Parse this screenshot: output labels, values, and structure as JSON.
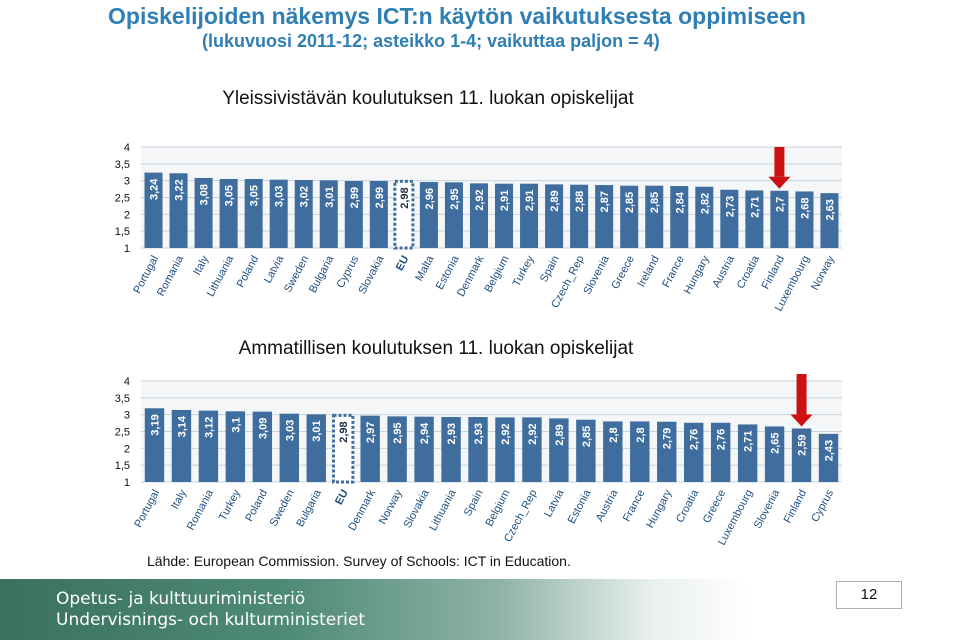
{
  "header": {
    "title": "Opiskelijoiden näkemys ICT:n käytön vaikutuksesta oppimiseen",
    "subtitle": "(lukuvuosi 2011-12; asteikko 1-4; vaikuttaa paljon = 4)"
  },
  "colors": {
    "bar": "#3f6e9e",
    "eu_bar_border": "#3f6e9e",
    "country_text": "#1f4f80",
    "arrow": "#cc1111",
    "title": "#2f7fb4"
  },
  "chart_data": [
    {
      "type": "bar",
      "title": "Yleissivistävän koulutuksen 11. luokan opiskelijat",
      "categories": [
        "Portugal",
        "Romania",
        "Italy",
        "Lithuania",
        "Poland",
        "Latvia",
        "Sweden",
        "Bulgaria",
        "Cyprus",
        "Slovakia",
        "EU",
        "Malta",
        "Estonia",
        "Denmark",
        "Belgium",
        "Turkey",
        "Spain",
        "Czech_Rep",
        "Slovenia",
        "Greece",
        "Ireland",
        "France",
        "Hungary",
        "Austria",
        "Croatia",
        "Finland",
        "Luxembourg",
        "Norway"
      ],
      "values": [
        3.24,
        3.22,
        3.08,
        3.05,
        3.05,
        3.03,
        3.02,
        3.01,
        2.99,
        2.99,
        2.98,
        2.96,
        2.95,
        2.92,
        2.91,
        2.91,
        2.89,
        2.88,
        2.87,
        2.85,
        2.85,
        2.84,
        2.82,
        2.73,
        2.71,
        2.7,
        2.68,
        2.63
      ],
      "value_labels": [
        "3,24",
        "3,22",
        "3,08",
        "3,05",
        "3,05",
        "3,03",
        "3,02",
        "3,01",
        "2,99",
        "2,99",
        "2,98",
        "2,96",
        "2,95",
        "2,92",
        "2,91",
        "2,91",
        "2,89",
        "2,88",
        "2,87",
        "2,85",
        "2,85",
        "2,84",
        "2,82",
        "2,73",
        "2,71",
        "2,7",
        "2,68",
        "2,63"
      ],
      "highlight_outline": "EU",
      "arrow_marker": "Finland",
      "y_ticks": [
        "1",
        "1,5",
        "2",
        "2,5",
        "3",
        "3,5",
        "4"
      ],
      "ylim": [
        1,
        4
      ],
      "grid": true
    },
    {
      "type": "bar",
      "title": "Ammatillisen koulutuksen 11. luokan opiskelijat",
      "categories": [
        "Portugal",
        "Italy",
        "Romania",
        "Turkey",
        "Poland",
        "Sweden",
        "Bulgaria",
        "EU",
        "Denmark",
        "Norway",
        "Slovakia",
        "Lithuania",
        "Spain",
        "Belgium",
        "Czech_Rep",
        "Latvia",
        "Estonia",
        "Austria",
        "France",
        "Hungary",
        "Croatia",
        "Greece",
        "Luxembourg",
        "Slovenia",
        "Finland",
        "Cyprus"
      ],
      "values": [
        3.19,
        3.14,
        3.12,
        3.1,
        3.09,
        3.03,
        3.01,
        2.98,
        2.97,
        2.95,
        2.94,
        2.93,
        2.93,
        2.92,
        2.92,
        2.89,
        2.85,
        2.8,
        2.8,
        2.79,
        2.76,
        2.76,
        2.71,
        2.65,
        2.59,
        2.43
      ],
      "value_labels": [
        "3,19",
        "3,14",
        "3,12",
        "3,1",
        "3,09",
        "3,03",
        "3,01",
        "2,98",
        "2,97",
        "2,95",
        "2,94",
        "2,93",
        "2,93",
        "2,92",
        "2,92",
        "2,89",
        "2,85",
        "2,8",
        "2,8",
        "2,79",
        "2,76",
        "2,76",
        "2,71",
        "2,65",
        "2,59",
        "2,43"
      ],
      "highlight_outline": "EU",
      "arrow_marker": "Finland",
      "y_ticks": [
        "1",
        "1,5",
        "2",
        "2,5",
        "3",
        "3,5",
        "4"
      ],
      "ylim": [
        1,
        4
      ],
      "grid": true
    }
  ],
  "source": "Lähde: European Commission. Survey of Schools: ICT in Education.",
  "footer": {
    "line1": "Opetus- ja kulttuuriministeriö",
    "line2": "Undervisnings- och kulturministeriet",
    "page_number": "12"
  }
}
